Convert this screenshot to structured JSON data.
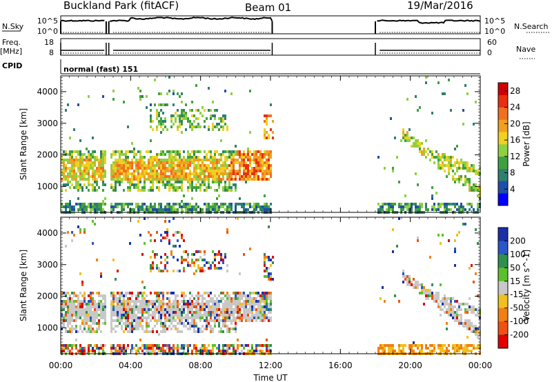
{
  "header": {
    "station": "Buckland Park (fitACF)",
    "beam": "Beam 01",
    "date": "19/Mar/2016"
  },
  "strips": {
    "nsky_label": "N.Sky",
    "nsky_ticks": [
      "10^5",
      "10^0"
    ],
    "nsearch_label": "N.Search",
    "nsearch_ticks": [
      "10^5",
      "10^0"
    ],
    "freq_label": "Freq.",
    "freq_unit": "[MHz]",
    "freq_ticks": [
      "18",
      "8"
    ],
    "nave_label": "Nave",
    "nave_ticks": [
      "60",
      "0"
    ],
    "cpid_label": "CPID",
    "cpid_value": "normal (fast) 151"
  },
  "chart_data": [
    {
      "type": "heatmap",
      "name": "power",
      "ylabel": "Slant Range [km]",
      "xlabel": "Time UT",
      "x_ticks": [
        "00:00",
        "04:00",
        "08:00",
        "12:00",
        "16:00",
        "20:00",
        "00:00"
      ],
      "x_range_hours": [
        0,
        24
      ],
      "y_ticks": [
        "1000",
        "2000",
        "3000",
        "4000"
      ],
      "y_range_km": [
        180,
        4500
      ],
      "colorbar": {
        "label": "Power [dB]",
        "ticks": [
          "4",
          "8",
          "12",
          "16",
          "20",
          "24",
          "28"
        ],
        "range": [
          0,
          30
        ],
        "colors": [
          "#0000ff",
          "#1f4fa8",
          "#2f7f6f",
          "#3fa03f",
          "#8fd040",
          "#f0d020",
          "#f0a020",
          "#f07020",
          "#e83010",
          "#d00000"
        ]
      },
      "data_gaps_hours": [
        [
          2.6,
          2.75
        ],
        [
          12.1,
          18.0
        ]
      ]
    },
    {
      "type": "heatmap",
      "name": "velocity",
      "ylabel": "Slant Range [km]",
      "xlabel": "Time UT",
      "x_ticks": [
        "00:00",
        "04:00",
        "08:00",
        "12:00",
        "16:00",
        "20:00",
        "00:00"
      ],
      "x_range_hours": [
        0,
        24
      ],
      "y_ticks": [
        "1000",
        "2000",
        "3000",
        "4000"
      ],
      "y_range_km": [
        180,
        4500
      ],
      "colorbar": {
        "label": "Velocity [m s^-1]",
        "ticks": [
          "200",
          "100",
          "50",
          "15",
          "-15",
          "-50",
          "-100",
          "-200"
        ],
        "colors": [
          "#1a2ea8",
          "#2a56c8",
          "#2f8f4f",
          "#5cc02c",
          "#c8c8c8",
          "#f0c020",
          "#f08010",
          "#f05010",
          "#e00000"
        ]
      },
      "data_gaps_hours": [
        [
          2.6,
          2.75
        ],
        [
          12.1,
          18.0
        ]
      ]
    }
  ],
  "colors": {
    "ground_scatter": "#c8c8c8"
  }
}
